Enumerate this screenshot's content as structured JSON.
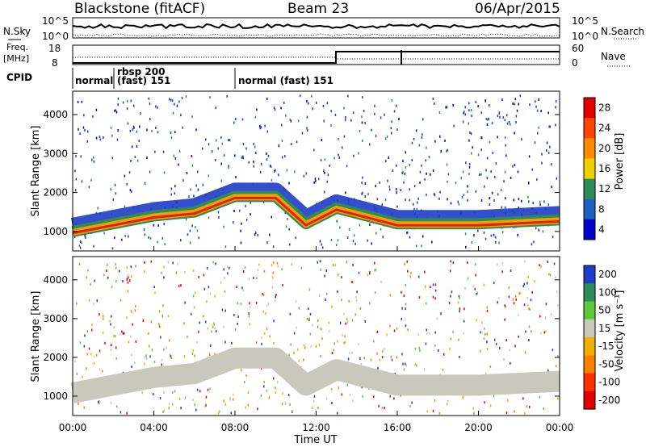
{
  "header": {
    "title": "Blackstone (fitACF)",
    "beam": "Beam 23",
    "date": "06/Apr/2015"
  },
  "top_panels": {
    "nsky": {
      "label": "N.Sky",
      "ytick_top": "10^5",
      "ytick_bottom": "10^0",
      "right_label": "N.Search"
    },
    "freq": {
      "label_line1": "Freq.",
      "label_line2": "[MHz]",
      "ytick_top": "18",
      "ytick_bottom": "8",
      "right_tick_top": "60",
      "right_tick_bottom": "0",
      "right_label": "Nave"
    },
    "cpid": {
      "label": "CPID",
      "segments": [
        {
          "start_hour": 0,
          "text": "normal"
        },
        {
          "start_hour": 2,
          "text": "rbsp 200",
          "text2": "(fast) 151"
        },
        {
          "start_hour": 8,
          "text": "normal (fast)  151"
        }
      ]
    }
  },
  "chart_data": [
    {
      "type": "heatmap",
      "name": "power",
      "ylabel": "Slant Range [km]",
      "xlim_hours": [
        0,
        24
      ],
      "ylim_km": [
        500,
        4600
      ],
      "yticks": [
        1000,
        2000,
        3000,
        4000
      ],
      "colorbar": {
        "label": "Power [dB]",
        "ticks": [
          "28",
          "24",
          "20",
          "16",
          "12",
          "8",
          "4"
        ],
        "colors": [
          "#e00000",
          "#ff4500",
          "#ff8c00",
          "#f0d000",
          "#2e8b57",
          "#1e60c0",
          "#0000cd"
        ]
      },
      "band": [
        {
          "hour": 0,
          "range_km": 1000
        },
        {
          "hour": 2,
          "range_km": 1200
        },
        {
          "hour": 4,
          "range_km": 1400
        },
        {
          "hour": 6,
          "range_km": 1500
        },
        {
          "hour": 8,
          "range_km": 1900
        },
        {
          "hour": 10,
          "range_km": 1900
        },
        {
          "hour": 11.5,
          "range_km": 1200
        },
        {
          "hour": 13,
          "range_km": 1600
        },
        {
          "hour": 16,
          "range_km": 1200
        },
        {
          "hour": 20,
          "range_km": 1200
        },
        {
          "hour": 24,
          "range_km": 1300
        }
      ]
    },
    {
      "type": "heatmap",
      "name": "velocity",
      "ylabel": "Slant Range [km]",
      "xlabel": "Time UT",
      "xticks": [
        "00:00",
        "04:00",
        "08:00",
        "12:00",
        "16:00",
        "20:00",
        "00:00"
      ],
      "xlim_hours": [
        0,
        24
      ],
      "ylim_km": [
        500,
        4600
      ],
      "yticks": [
        1000,
        2000,
        3000,
        4000
      ],
      "colorbar": {
        "label": "Velocity [m s⁻¹]",
        "ticks": [
          "200",
          "100",
          "50",
          "15",
          "-15",
          "-50",
          "-100",
          "-200"
        ],
        "colors": [
          "#1e3cc8",
          "#2e8b57",
          "#5cc83c",
          "#c8c8bc",
          "#f0b000",
          "#ff8000",
          "#ff3000",
          "#e00000"
        ]
      }
    }
  ]
}
